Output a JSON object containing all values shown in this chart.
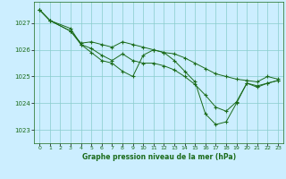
{
  "background_color": "#cceeff",
  "grid_color": "#88cccc",
  "line_color": "#1a6b1a",
  "xlabel": "Graphe pression niveau de la mer (hPa)",
  "xlim": [
    -0.5,
    23.5
  ],
  "ylim": [
    1022.5,
    1027.8
  ],
  "yticks": [
    1023,
    1024,
    1025,
    1026,
    1027
  ],
  "xticks": [
    0,
    1,
    2,
    3,
    4,
    5,
    6,
    7,
    8,
    9,
    10,
    11,
    12,
    13,
    14,
    15,
    16,
    17,
    18,
    19,
    20,
    21,
    22,
    23
  ],
  "series1_x": [
    0,
    1,
    3,
    4,
    5,
    6,
    7,
    8,
    9,
    10,
    11,
    12,
    13,
    14,
    15,
    16,
    17,
    18,
    19,
    20,
    21,
    22,
    23
  ],
  "series1_y": [
    1027.5,
    1027.1,
    1026.7,
    1026.25,
    1026.3,
    1026.2,
    1026.1,
    1026.3,
    1026.2,
    1026.1,
    1026.0,
    1025.9,
    1025.85,
    1025.7,
    1025.5,
    1025.3,
    1025.1,
    1025.0,
    1024.9,
    1024.85,
    1024.8,
    1025.0,
    1024.9
  ],
  "series2_x": [
    0,
    1,
    3,
    4,
    5,
    6,
    7,
    8,
    9,
    10,
    11,
    12,
    13,
    14,
    15,
    16,
    17,
    18,
    19,
    20,
    21,
    22,
    23
  ],
  "series2_y": [
    1027.5,
    1027.1,
    1026.8,
    1026.2,
    1026.05,
    1025.8,
    1025.6,
    1025.85,
    1025.6,
    1025.5,
    1025.5,
    1025.4,
    1025.25,
    1025.0,
    1024.7,
    1024.3,
    1023.85,
    1023.7,
    1024.05,
    1024.75,
    1024.6,
    1024.75,
    1024.85
  ],
  "series3_x": [
    0,
    1,
    3,
    4,
    5,
    6,
    7,
    8,
    9,
    10,
    11,
    12,
    13,
    14,
    15,
    16,
    17,
    18,
    19,
    20,
    21,
    22,
    23
  ],
  "series3_y": [
    1027.5,
    1027.1,
    1026.7,
    1026.2,
    1025.9,
    1025.6,
    1025.5,
    1025.2,
    1025.0,
    1025.8,
    1026.0,
    1025.9,
    1025.6,
    1025.2,
    1024.8,
    1023.6,
    1023.2,
    1023.3,
    1024.0,
    1024.75,
    1024.65,
    1024.75,
    1024.85
  ]
}
